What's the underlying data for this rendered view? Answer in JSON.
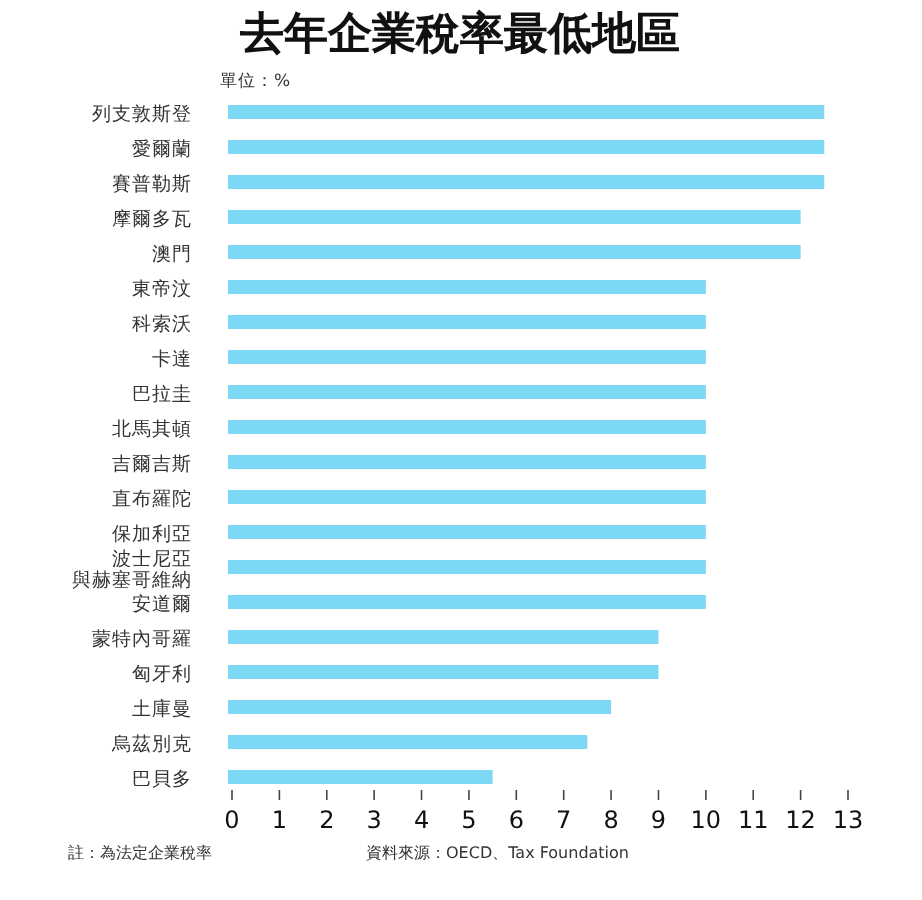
{
  "chart_data": {
    "type": "bar",
    "orientation": "horizontal",
    "title": "去年企業稅率最低地區",
    "categories": [
      "列支敦斯登",
      "愛爾蘭",
      "賽普勒斯",
      "摩爾多瓦",
      "澳門",
      "東帝汶",
      "科索沃",
      "卡達",
      "巴拉圭",
      "北馬其頓",
      "吉爾吉斯",
      "直布羅陀",
      "保加利亞",
      "波士尼亞與赫塞哥維納",
      "安道爾",
      "蒙特內哥羅",
      "匈牙利",
      "土庫曼",
      "烏茲別克",
      "巴貝多"
    ],
    "values": [
      12.5,
      12.5,
      12.5,
      12,
      12,
      10,
      10,
      10,
      10,
      10,
      10,
      10,
      10,
      10,
      10,
      9,
      9,
      8,
      7.5,
      5.5
    ],
    "color": "#7dd8f5",
    "xlim": [
      0,
      13
    ],
    "xticks": [
      0,
      1,
      2,
      3,
      4,
      5,
      6,
      7,
      8,
      9,
      10,
      11,
      12,
      13
    ],
    "grid": false,
    "annotations": [
      "單位：%",
      "註：為法定企業稅率",
      "資料來源：OECD、Tax Foundation"
    ]
  }
}
